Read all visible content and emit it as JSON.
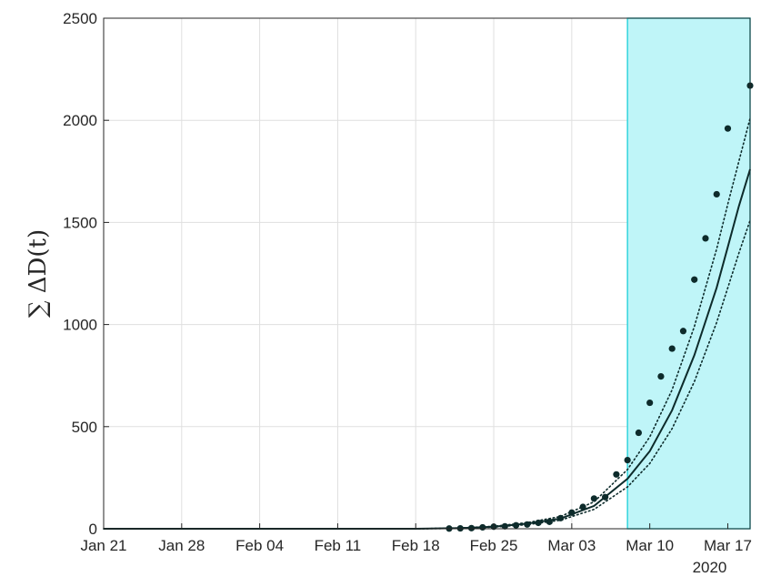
{
  "chart_data": {
    "type": "line",
    "ylabel": "∑ ΔD(t)",
    "year_label": "2020",
    "x_range": [
      "2020-01-21",
      "2020-03-19"
    ],
    "ylim": [
      0,
      2500
    ],
    "grid": true,
    "x_ticks": [
      {
        "date": "2020-01-21",
        "label": "Jan 21"
      },
      {
        "date": "2020-01-28",
        "label": "Jan 28"
      },
      {
        "date": "2020-02-04",
        "label": "Feb 04"
      },
      {
        "date": "2020-02-11",
        "label": "Feb 11"
      },
      {
        "date": "2020-02-18",
        "label": "Feb 18"
      },
      {
        "date": "2020-02-25",
        "label": "Feb 25"
      },
      {
        "date": "2020-03-03",
        "label": "Mar 03"
      },
      {
        "date": "2020-03-10",
        "label": "Mar 10"
      },
      {
        "date": "2020-03-17",
        "label": "Mar 17"
      }
    ],
    "y_ticks": [
      0,
      500,
      1000,
      1500,
      2000,
      2500
    ],
    "highlight_region": {
      "start": "2020-03-08",
      "end": "2020-03-19",
      "color": "#bff5f8",
      "border": "#33d6dd"
    },
    "observed_points": {
      "color": "#0d2b2b",
      "points": [
        {
          "x": "2020-02-21",
          "y": 1
        },
        {
          "x": "2020-02-22",
          "y": 2
        },
        {
          "x": "2020-02-23",
          "y": 3
        },
        {
          "x": "2020-02-24",
          "y": 7
        },
        {
          "x": "2020-02-25",
          "y": 10
        },
        {
          "x": "2020-02-26",
          "y": 12
        },
        {
          "x": "2020-02-27",
          "y": 17
        },
        {
          "x": "2020-02-28",
          "y": 21
        },
        {
          "x": "2020-02-29",
          "y": 29
        },
        {
          "x": "2020-03-01",
          "y": 34
        },
        {
          "x": "2020-03-02",
          "y": 52
        },
        {
          "x": "2020-03-03",
          "y": 79
        },
        {
          "x": "2020-03-04",
          "y": 107
        },
        {
          "x": "2020-03-05",
          "y": 148
        },
        {
          "x": "2020-03-06",
          "y": 155
        },
        {
          "x": "2020-03-07",
          "y": 266
        },
        {
          "x": "2020-03-08",
          "y": 336
        },
        {
          "x": "2020-03-09",
          "y": 470
        },
        {
          "x": "2020-03-10",
          "y": 617
        },
        {
          "x": "2020-03-11",
          "y": 746
        },
        {
          "x": "2020-03-12",
          "y": 882
        },
        {
          "x": "2020-03-13",
          "y": 968
        },
        {
          "x": "2020-03-14",
          "y": 1220
        },
        {
          "x": "2020-03-15",
          "y": 1422
        },
        {
          "x": "2020-03-16",
          "y": 1638
        },
        {
          "x": "2020-03-17",
          "y": 1960
        },
        {
          "x": "2020-03-19",
          "y": 2170
        }
      ]
    },
    "series": [
      {
        "style": "solid",
        "color": "#0d2b2b",
        "points": [
          {
            "x": "2020-01-21",
            "y": 0
          },
          {
            "x": "2020-02-18",
            "y": 0
          },
          {
            "x": "2020-02-22",
            "y": 3
          },
          {
            "x": "2020-02-25",
            "y": 10
          },
          {
            "x": "2020-02-28",
            "y": 25
          },
          {
            "x": "2020-03-02",
            "y": 50
          },
          {
            "x": "2020-03-05",
            "y": 112
          },
          {
            "x": "2020-03-08",
            "y": 245
          },
          {
            "x": "2020-03-10",
            "y": 380
          },
          {
            "x": "2020-03-12",
            "y": 580
          },
          {
            "x": "2020-03-14",
            "y": 850
          },
          {
            "x": "2020-03-16",
            "y": 1180
          },
          {
            "x": "2020-03-17",
            "y": 1380
          },
          {
            "x": "2020-03-18",
            "y": 1580
          },
          {
            "x": "2020-03-19",
            "y": 1760
          }
        ]
      },
      {
        "style": "dotted",
        "color": "#0d2b2b",
        "points": [
          {
            "x": "2020-01-21",
            "y": 0
          },
          {
            "x": "2020-02-18",
            "y": 0
          },
          {
            "x": "2020-02-22",
            "y": 4
          },
          {
            "x": "2020-02-25",
            "y": 12
          },
          {
            "x": "2020-02-28",
            "y": 30
          },
          {
            "x": "2020-03-02",
            "y": 60
          },
          {
            "x": "2020-03-05",
            "y": 132
          },
          {
            "x": "2020-03-08",
            "y": 290
          },
          {
            "x": "2020-03-10",
            "y": 450
          },
          {
            "x": "2020-03-12",
            "y": 680
          },
          {
            "x": "2020-03-14",
            "y": 990
          },
          {
            "x": "2020-03-16",
            "y": 1370
          },
          {
            "x": "2020-03-17",
            "y": 1590
          },
          {
            "x": "2020-03-18",
            "y": 1800
          },
          {
            "x": "2020-03-19",
            "y": 2010
          }
        ]
      },
      {
        "style": "dotted",
        "color": "#0d2b2b",
        "points": [
          {
            "x": "2020-01-21",
            "y": 0
          },
          {
            "x": "2020-02-18",
            "y": 0
          },
          {
            "x": "2020-02-22",
            "y": 2
          },
          {
            "x": "2020-02-25",
            "y": 8
          },
          {
            "x": "2020-02-28",
            "y": 20
          },
          {
            "x": "2020-03-02",
            "y": 42
          },
          {
            "x": "2020-03-05",
            "y": 95
          },
          {
            "x": "2020-03-08",
            "y": 205
          },
          {
            "x": "2020-03-10",
            "y": 320
          },
          {
            "x": "2020-03-12",
            "y": 490
          },
          {
            "x": "2020-03-14",
            "y": 720
          },
          {
            "x": "2020-03-16",
            "y": 1010
          },
          {
            "x": "2020-03-17",
            "y": 1180
          },
          {
            "x": "2020-03-18",
            "y": 1350
          },
          {
            "x": "2020-03-19",
            "y": 1510
          }
        ]
      }
    ]
  }
}
